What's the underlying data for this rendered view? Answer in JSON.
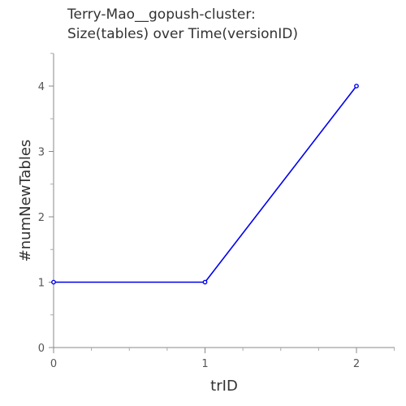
{
  "chart_data": {
    "type": "line",
    "title": [
      "Terry-Mao__gopush-cluster:",
      "Size(tables) over Time(versionID)"
    ],
    "xlabel": "trID",
    "ylabel": "#numNewTables",
    "x": [
      0,
      1,
      2
    ],
    "series": [
      {
        "values": [
          1,
          1,
          4
        ],
        "color": "#0000ee"
      }
    ],
    "xticks": [
      0,
      1,
      2
    ],
    "yticks": [
      0,
      1,
      2,
      3,
      4
    ],
    "xlim": [
      0,
      2.25
    ],
    "ylim": [
      0,
      4.5
    ],
    "grid": false
  }
}
